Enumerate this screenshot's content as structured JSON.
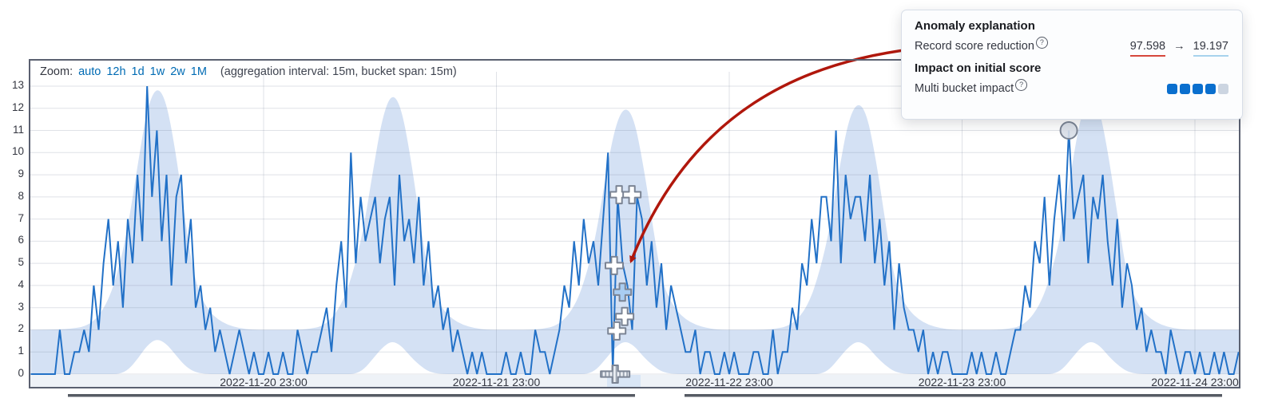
{
  "colors": {
    "line": "#2271c7",
    "band": "#d4e1f4",
    "grid": "rgba(110,122,145,0.22)",
    "frame": "#5a6070",
    "axis_strip": "#eef2f7",
    "link": "#006bb4",
    "arrow_red": "#b0170c",
    "underline_red": "#d6473c",
    "underline_blue": "#a7d3ed",
    "impact_filled": "#0a6fce",
    "impact_empty": "#ccd5e1",
    "marker_stroke": "#7b8494",
    "marker_fill": "#ffffff",
    "marker_selected_fill": "#a9cdf2",
    "circle_fill": "#d9dfe8",
    "context_bar": "#565b64",
    "selection_highlight": "rgba(190,214,244,0.45)"
  },
  "icons": {
    "help": "?",
    "value_arrow": "→"
  },
  "controls": {
    "zoom_label": "Zoom:",
    "zoom_links": [
      "auto",
      "12h",
      "1d",
      "1w",
      "2w",
      "1M"
    ],
    "aggregation_note": "(aggregation interval: 15m, bucket span: 15m)"
  },
  "tooltip": {
    "title": "Anomaly explanation",
    "rows": [
      {
        "label": "Record score reduction",
        "value_from": "97.598",
        "arrow": "→",
        "value_to": "19.197"
      }
    ],
    "subtitle": "Impact on initial score",
    "impact_label": "Multi bucket impact",
    "impact_filled": 4,
    "impact_total": 5
  },
  "chart_data": {
    "type": "line",
    "title": "",
    "xlabel": "",
    "ylabel": "",
    "ylim": [
      0,
      13
    ],
    "grid": true,
    "y_ticks": [
      0,
      1,
      2,
      3,
      4,
      5,
      6,
      7,
      8,
      9,
      10,
      11,
      12,
      13
    ],
    "x_ticks": [
      {
        "t": 1,
        "label": "2022-11-20 23:00"
      },
      {
        "t": 2,
        "label": "2022-11-21 23:00"
      },
      {
        "t": 3,
        "label": "2022-11-22 23:00"
      },
      {
        "t": 4,
        "label": "2022-11-23 23:00"
      },
      {
        "t": 5,
        "label": "2022-11-24 23:00"
      }
    ],
    "series": [
      {
        "name": "model bounds",
        "type": "band",
        "points": [
          [
            0,
            0,
            2
          ],
          [
            0.15,
            0,
            2
          ],
          [
            0.26,
            0,
            2.2
          ],
          [
            0.33,
            0,
            3.2
          ],
          [
            0.38,
            0,
            4.8
          ],
          [
            0.42,
            0.2,
            6.8
          ],
          [
            0.46,
            0.7,
            9.5
          ],
          [
            0.5,
            1.3,
            12
          ],
          [
            0.54,
            1.6,
            13
          ],
          [
            0.58,
            1.4,
            12.4
          ],
          [
            0.62,
            0.9,
            10.2
          ],
          [
            0.66,
            0.4,
            7.2
          ],
          [
            0.7,
            0.1,
            4.4
          ],
          [
            0.75,
            0,
            3
          ],
          [
            0.82,
            0,
            2.3
          ],
          [
            0.92,
            0,
            2
          ],
          [
            1.05,
            0,
            2
          ],
          [
            1.18,
            0,
            2
          ],
          [
            1.27,
            0,
            2.2
          ],
          [
            1.34,
            0,
            3.2
          ],
          [
            1.39,
            0,
            4.8
          ],
          [
            1.43,
            0.2,
            6.6
          ],
          [
            1.47,
            0.7,
            9.2
          ],
          [
            1.51,
            1.2,
            11.6
          ],
          [
            1.55,
            1.5,
            12.7
          ],
          [
            1.59,
            1.3,
            12.1
          ],
          [
            1.63,
            0.8,
            9.9
          ],
          [
            1.67,
            0.4,
            7
          ],
          [
            1.71,
            0.1,
            4.3
          ],
          [
            1.76,
            0,
            3
          ],
          [
            1.83,
            0,
            2.3
          ],
          [
            1.93,
            0,
            2
          ],
          [
            2.05,
            0,
            2
          ],
          [
            2.18,
            0,
            2
          ],
          [
            2.27,
            0,
            2.2
          ],
          [
            2.34,
            0,
            3.1
          ],
          [
            2.39,
            0,
            4.6
          ],
          [
            2.43,
            0.2,
            6.4
          ],
          [
            2.47,
            0.7,
            9
          ],
          [
            2.51,
            1.2,
            11.2
          ],
          [
            2.55,
            1.5,
            12.1
          ],
          [
            2.59,
            1.3,
            11.6
          ],
          [
            2.63,
            0.8,
            9.5
          ],
          [
            2.67,
            0.4,
            6.8
          ],
          [
            2.71,
            0.1,
            4.2
          ],
          [
            2.76,
            0,
            3
          ],
          [
            2.83,
            0,
            2.3
          ],
          [
            2.93,
            0,
            2
          ],
          [
            3.05,
            0,
            2
          ],
          [
            3.18,
            0,
            2
          ],
          [
            3.27,
            0,
            2.2
          ],
          [
            3.34,
            0,
            3.1
          ],
          [
            3.39,
            0,
            4.7
          ],
          [
            3.43,
            0.2,
            6.5
          ],
          [
            3.47,
            0.7,
            9.1
          ],
          [
            3.51,
            1.2,
            11.4
          ],
          [
            3.55,
            1.5,
            12.3
          ],
          [
            3.59,
            1.3,
            11.8
          ],
          [
            3.63,
            0.8,
            9.7
          ],
          [
            3.67,
            0.4,
            6.9
          ],
          [
            3.71,
            0.1,
            4.2
          ],
          [
            3.76,
            0,
            3
          ],
          [
            3.83,
            0,
            2.3
          ],
          [
            3.93,
            0,
            2
          ],
          [
            4.05,
            0,
            2
          ],
          [
            4.18,
            0,
            2
          ],
          [
            4.27,
            0,
            2.2
          ],
          [
            4.34,
            0,
            3.2
          ],
          [
            4.39,
            0,
            4.8
          ],
          [
            4.43,
            0.2,
            6.6
          ],
          [
            4.47,
            0.7,
            9.3
          ],
          [
            4.51,
            1.2,
            11.7
          ],
          [
            4.55,
            1.5,
            12.6
          ],
          [
            4.59,
            1.3,
            12
          ],
          [
            4.63,
            0.8,
            9.8
          ],
          [
            4.67,
            0.4,
            7
          ],
          [
            4.71,
            0.1,
            4.3
          ],
          [
            4.76,
            0,
            3
          ],
          [
            4.83,
            0,
            2.3
          ],
          [
            4.93,
            0,
            2
          ],
          [
            5.05,
            0,
            2
          ],
          [
            5.2,
            0,
            2
          ]
        ]
      },
      {
        "name": "actual",
        "type": "line",
        "t0": 0,
        "step_days": 0.0208333,
        "values": [
          0,
          0,
          0,
          0,
          0,
          0,
          2,
          0,
          0,
          1,
          1,
          2,
          1,
          4,
          2,
          5,
          7,
          4,
          6,
          3,
          7,
          5,
          9,
          6,
          13,
          8,
          11,
          6,
          9,
          4,
          8,
          9,
          5,
          7,
          3,
          4,
          2,
          3,
          1,
          2,
          1,
          0,
          1,
          2,
          1,
          0,
          1,
          0,
          0,
          1,
          0,
          0,
          1,
          0,
          0,
          2,
          1,
          0,
          1,
          1,
          2,
          3,
          1,
          4,
          6,
          3,
          10,
          5,
          8,
          6,
          7,
          8,
          5,
          7,
          8,
          4,
          9,
          6,
          7,
          5,
          8,
          4,
          6,
          3,
          4,
          2,
          3,
          1,
          2,
          1,
          0,
          1,
          0,
          1,
          0,
          0,
          0,
          0,
          1,
          0,
          0,
          1,
          0,
          0,
          2,
          1,
          1,
          0,
          1,
          2,
          4,
          3,
          6,
          4,
          7,
          5,
          6,
          4,
          7,
          10,
          0,
          8,
          5,
          4,
          2,
          8,
          7,
          4,
          6,
          3,
          5,
          2,
          4,
          3,
          2,
          1,
          1,
          2,
          0,
          1,
          1,
          0,
          0,
          1,
          0,
          1,
          0,
          0,
          0,
          1,
          1,
          0,
          0,
          2,
          0,
          1,
          1,
          3,
          2,
          5,
          4,
          7,
          5,
          8,
          8,
          6,
          11,
          5,
          9,
          7,
          8,
          8,
          6,
          9,
          5,
          7,
          4,
          6,
          2,
          5,
          3,
          2,
          2,
          1,
          2,
          0,
          1,
          0,
          1,
          1,
          0,
          0,
          0,
          0,
          1,
          0,
          1,
          0,
          0,
          1,
          0,
          0,
          1,
          2,
          2,
          4,
          3,
          6,
          5,
          8,
          4,
          7,
          9,
          6,
          11,
          7,
          8,
          9,
          5,
          8,
          7,
          9,
          6,
          4,
          7,
          3,
          5,
          4,
          2,
          3,
          1,
          2,
          1,
          1,
          0,
          2,
          1,
          0,
          1,
          1,
          0,
          1,
          0,
          0,
          1,
          0,
          1,
          0,
          0,
          1
        ]
      }
    ],
    "anomaly_markers": [
      {
        "t": 2.527,
        "value": 8.1,
        "style": "cross"
      },
      {
        "t": 2.582,
        "value": 8.1,
        "style": "cross"
      },
      {
        "t": 2.506,
        "value": 4.9,
        "style": "cross"
      },
      {
        "t": 2.541,
        "value": 3.7,
        "style": "cross-selected"
      },
      {
        "t": 2.551,
        "value": 2.6,
        "style": "cross"
      },
      {
        "t": 2.517,
        "value": 1.95,
        "style": "cross"
      },
      {
        "t": 2.51,
        "value": 0,
        "style": "cross-multibucket"
      }
    ],
    "circle_marker": {
      "t": 4.4583,
      "value": 11
    },
    "annotation_arrow": {
      "to_t": 2.571,
      "to_value": 4.8
    }
  }
}
